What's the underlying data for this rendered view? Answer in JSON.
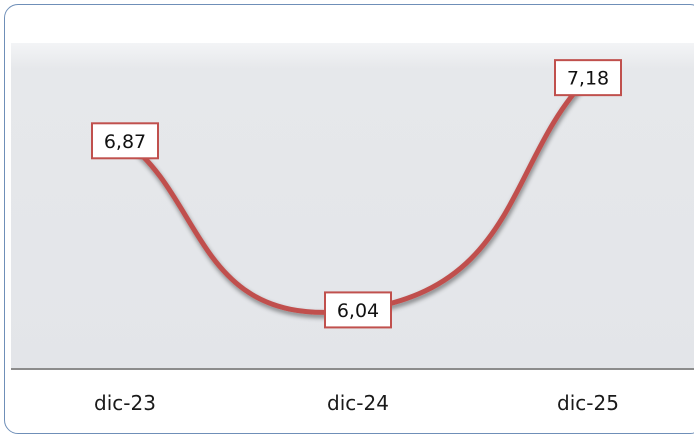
{
  "chart_data": {
    "type": "line",
    "categories": [
      "dic-23",
      "dic-24",
      "dic-25"
    ],
    "series": [
      {
        "values": [
          6.87,
          6.04,
          7.18
        ],
        "labels": [
          "6,87",
          "6,04",
          "7,18"
        ]
      }
    ],
    "title": "",
    "xlabel": "",
    "ylabel": "",
    "ylim": [
      5.75,
      7.35
    ],
    "grid": false,
    "legend": "none",
    "line_color": "#c0504d",
    "label_border_color": "#c0504d",
    "plot_background": "#e4e6ea",
    "baseline_color": "#8c8c8c"
  }
}
